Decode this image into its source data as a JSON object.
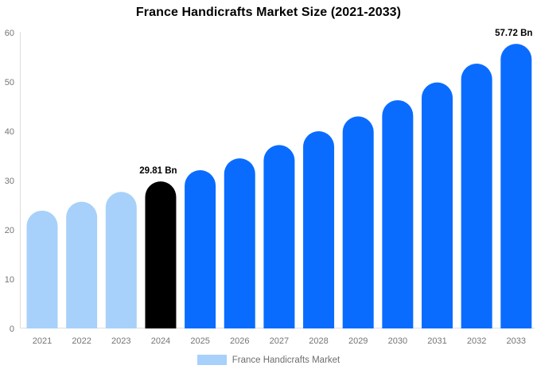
{
  "chart_data": {
    "type": "bar",
    "title": "France Handicrafts Market Size (2021-2033)",
    "categories": [
      "2021",
      "2022",
      "2023",
      "2024",
      "2025",
      "2026",
      "2027",
      "2028",
      "2029",
      "2030",
      "2031",
      "2032",
      "2033"
    ],
    "values": [
      23.9,
      25.7,
      27.7,
      29.81,
      32.1,
      34.5,
      37.2,
      40.0,
      43.0,
      46.3,
      49.9,
      53.7,
      57.72
    ],
    "unit": "Bn",
    "bar_colors": [
      "#a7d1fa",
      "#a7d1fa",
      "#a7d1fa",
      "#000000",
      "#0a6cff",
      "#0a6cff",
      "#0a6cff",
      "#0a6cff",
      "#0a6cff",
      "#0a6cff",
      "#0a6cff",
      "#0a6cff",
      "#0a6cff"
    ],
    "annotations": [
      {
        "category": "2024",
        "text": "29.81 Bn"
      },
      {
        "category": "2033",
        "text": "57.72 Bn"
      }
    ],
    "xlabel": "",
    "ylabel": "",
    "ylim": [
      0,
      60
    ],
    "yticks": [
      0,
      10,
      20,
      30,
      40,
      50,
      60
    ],
    "grid": false,
    "legend": {
      "label": "France Handicrafts Market",
      "swatch_color": "#a7d1fa",
      "position": "bottom"
    },
    "colors": {
      "annotation_text": "#000000",
      "tick_label": "#757575",
      "legend_label": "#6e6e6e",
      "axis_line": "#dedede",
      "background": "#ffffff"
    }
  }
}
